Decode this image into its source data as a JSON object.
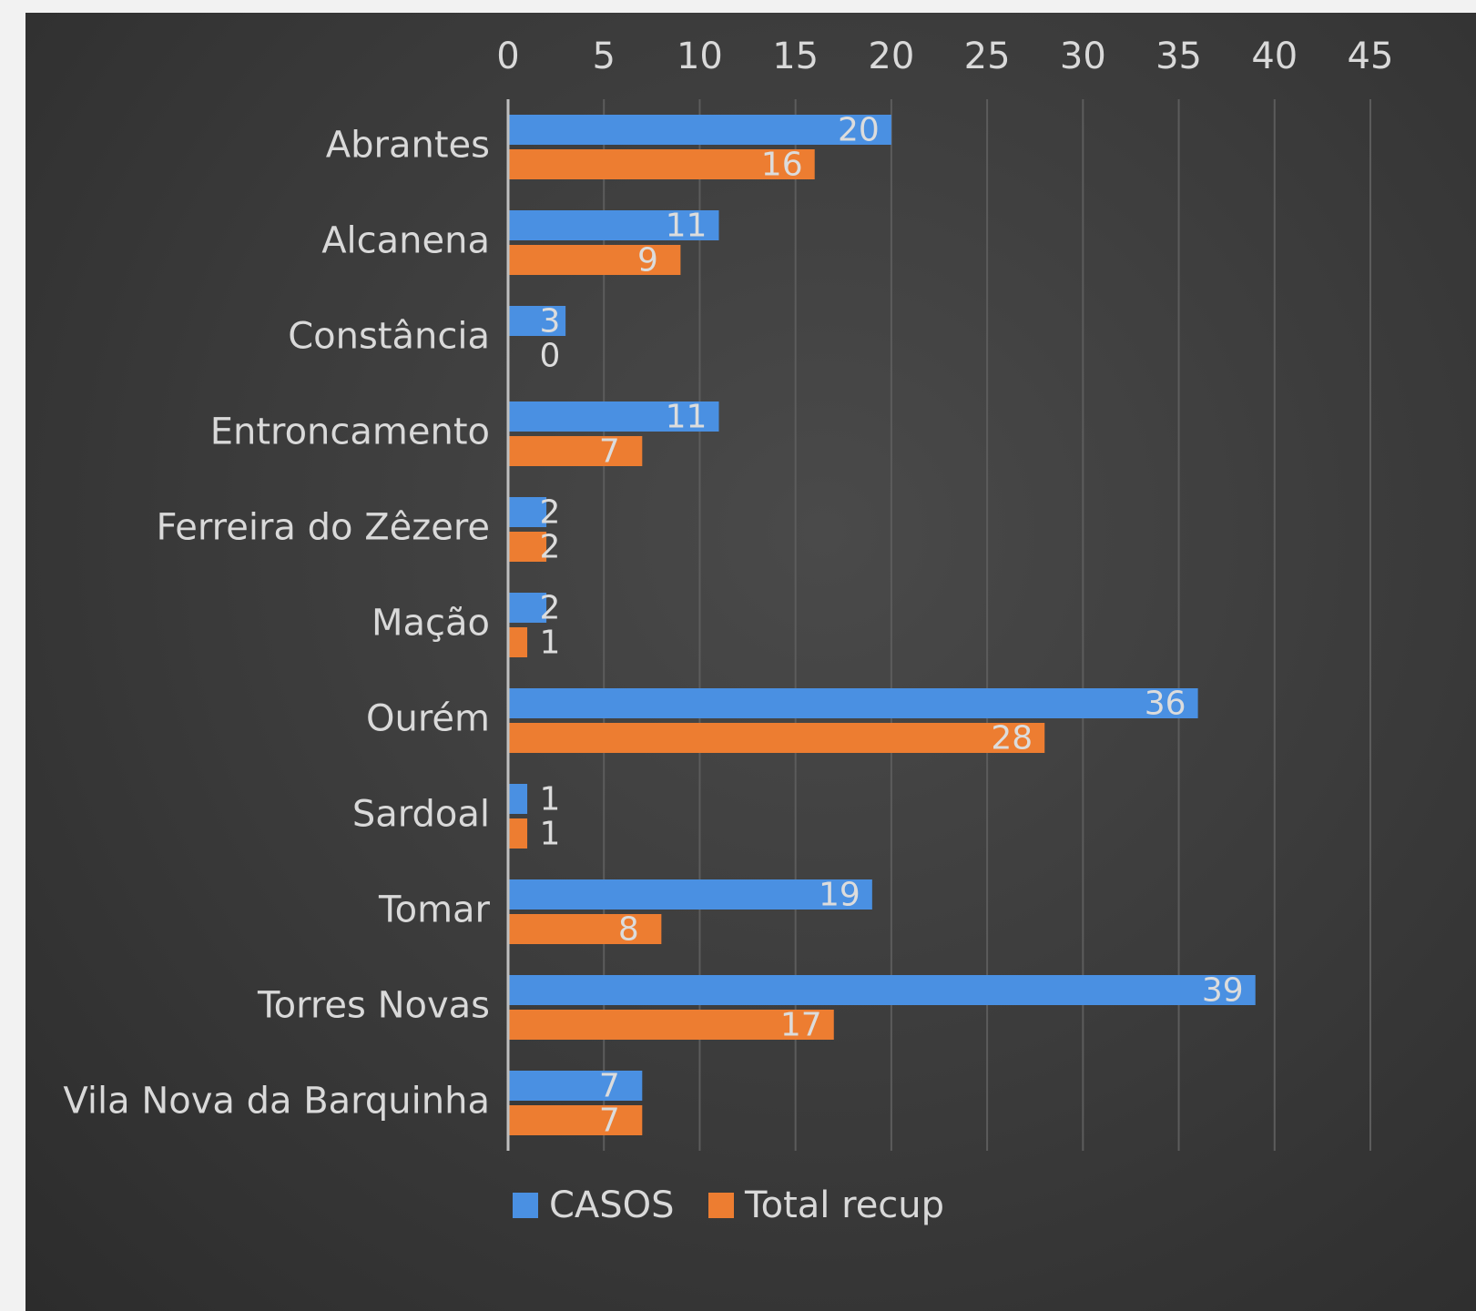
{
  "chart_data": {
    "type": "bar",
    "orientation": "horizontal",
    "categories": [
      "Abrantes",
      "Alcanena",
      "Constância",
      "Entroncamento",
      "Ferreira do Zêzere",
      "Mação",
      "Ourém",
      "Sardoal",
      "Tomar",
      "Torres Novas",
      "Vila Nova da Barquinha"
    ],
    "series": [
      {
        "name": "CASOS",
        "color": "#4a90e2",
        "values": [
          20,
          11,
          3,
          11,
          2,
          2,
          36,
          1,
          19,
          39,
          7
        ]
      },
      {
        "name": "Total recup",
        "color": "#ed7d31",
        "values": [
          16,
          9,
          0,
          7,
          2,
          1,
          28,
          1,
          8,
          17,
          7
        ]
      }
    ],
    "xlim": [
      0,
      45
    ],
    "xticks": [
      0,
      5,
      10,
      15,
      20,
      25,
      30,
      35,
      40,
      45
    ],
    "x_axis_position": "top",
    "grid": true,
    "legend_position": "bottom",
    "data_labels": true
  }
}
